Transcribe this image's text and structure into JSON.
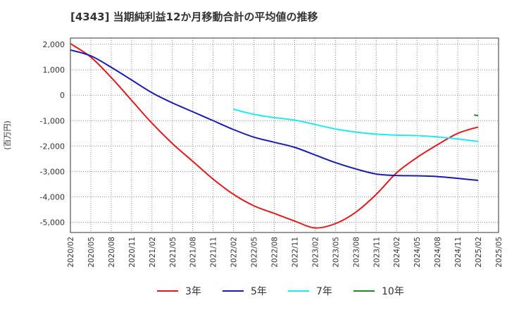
{
  "chart_data": {
    "type": "line",
    "title": "[4343]  当期純利益12か月移動合計の平均値の推移",
    "ylabel": "(百万円)",
    "xlabel": "",
    "ylim": [
      -5400,
      2250
    ],
    "grid": true,
    "legend_position": "bottom",
    "x": [
      "2020/02",
      "2020/05",
      "2020/08",
      "2020/11",
      "2021/02",
      "2021/05",
      "2021/08",
      "2021/11",
      "2022/02",
      "2022/05",
      "2022/08",
      "2022/11",
      "2023/02",
      "2023/05",
      "2023/08",
      "2023/11",
      "2024/02",
      "2024/05",
      "2024/08",
      "2024/11",
      "2025/02",
      "2025/05"
    ],
    "yticks": [
      2000,
      1000,
      0,
      -1000,
      -2000,
      -3000,
      -4000,
      -5000
    ],
    "ytick_labels": [
      "2,000",
      "1,000",
      "0",
      "-1,000",
      "-2,000",
      "-3,000",
      "-4,000",
      "-5,000"
    ],
    "series": [
      {
        "name": "3年",
        "color": "#e31a1c",
        "values": [
          2030,
          1500,
          700,
          -200,
          -1100,
          -1900,
          -2600,
          -3300,
          -3900,
          -4350,
          -4650,
          -4950,
          -5220,
          -5050,
          -4600,
          -3900,
          -3050,
          -2450,
          -1950,
          -1500,
          -1250,
          null
        ]
      },
      {
        "name": "5年",
        "color": "#1a1ab4",
        "values": [
          1780,
          1550,
          1100,
          600,
          100,
          -300,
          -650,
          -1000,
          -1350,
          -1650,
          -1850,
          -2050,
          -2350,
          -2650,
          -2900,
          -3100,
          -3160,
          -3170,
          -3200,
          -3270,
          -3350,
          null
        ]
      },
      {
        "name": "7年",
        "color": "#22e8f0",
        "values": [
          null,
          null,
          null,
          null,
          null,
          null,
          null,
          null,
          -550,
          -750,
          -880,
          -980,
          -1150,
          -1330,
          -1450,
          -1530,
          -1570,
          -1590,
          -1640,
          -1720,
          -1820,
          null
        ]
      },
      {
        "name": "10年",
        "color": "#228b22",
        "values": [
          null,
          null,
          null,
          null,
          null,
          null,
          null,
          null,
          null,
          null,
          null,
          null,
          null,
          null,
          null,
          null,
          null,
          null,
          null,
          null,
          null,
          null
        ],
        "partial": {
          "x": [
            19.8,
            20
          ],
          "values": [
            -780,
            -800
          ]
        }
      }
    ]
  }
}
